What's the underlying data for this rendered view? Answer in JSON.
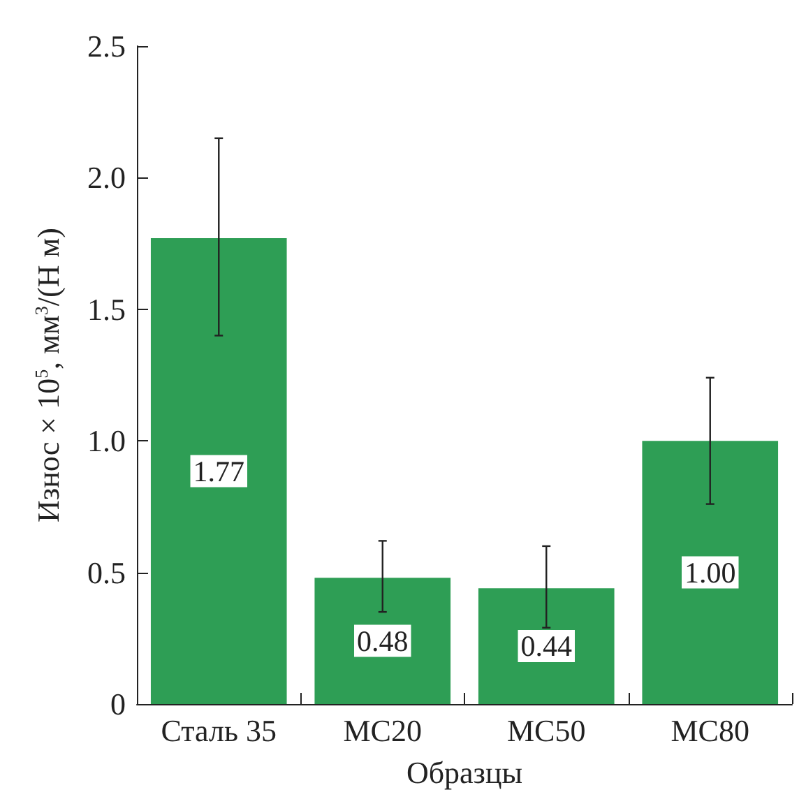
{
  "chart_data": {
    "type": "bar",
    "xlabel": "Образцы",
    "ylabel": "Износ × 10$^{5}$, мм$^{3}$/(Н м)",
    "categories": [
      "Сталь 35",
      "МС20",
      "МС50",
      "МС80"
    ],
    "values": [
      1.77,
      0.48,
      0.44,
      1.0
    ],
    "color": "#2e9e55",
    "errors": [
      [
        1.4,
        2.15
      ],
      [
        0.35,
        0.62
      ],
      [
        0.29,
        0.6
      ],
      [
        0.76,
        1.24
      ]
    ],
    "value_labels": [
      "1.77",
      "0.48",
      "0.44",
      "1.00"
    ],
    "ylim": [
      0,
      2.5
    ],
    "yticks": [
      0,
      {
        "value": 0.5,
        "label": "0.5"
      },
      {
        "value": 1,
        "label": "1.0"
      },
      {
        "value": 1.5,
        "label": "1.5"
      },
      {
        "value": 2,
        "label": "2.0"
      },
      {
        "value": 2.5,
        "label": "2.5"
      }
    ],
    "grid": false
  }
}
